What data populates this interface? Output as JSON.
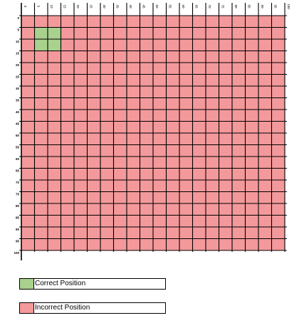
{
  "grid": {
    "columns": 20,
    "rows": 20,
    "step": 5,
    "min": 0,
    "max": 100,
    "x_tick_labels": [
      "0",
      "5",
      "10",
      "15",
      "20",
      "25",
      "30",
      "35",
      "40",
      "45",
      "50",
      "55",
      "60",
      "65",
      "70",
      "75",
      "80",
      "85",
      "90",
      "95",
      "100"
    ],
    "y_tick_labels": [
      "0",
      "5",
      "10",
      "15",
      "20",
      "25",
      "30",
      "35",
      "40",
      "45",
      "50",
      "55",
      "60",
      "65",
      "70",
      "75",
      "80",
      "85",
      "90",
      "95",
      "100"
    ],
    "correct_cells": [
      {
        "col": 1,
        "row": 1
      },
      {
        "col": 2,
        "row": 1
      },
      {
        "col": 1,
        "row": 2
      },
      {
        "col": 2,
        "row": 2
      }
    ]
  },
  "legend": {
    "correct": {
      "label": "Correct Position",
      "color": "#a8d18d"
    },
    "incorrect": {
      "label": "Incorrect Position",
      "color": "#f4999b"
    }
  },
  "colors": {
    "incorrect_fill": "#f4999b",
    "correct_fill": "#a8d18d",
    "grid_line": "#000000",
    "label_color": "#000000"
  }
}
